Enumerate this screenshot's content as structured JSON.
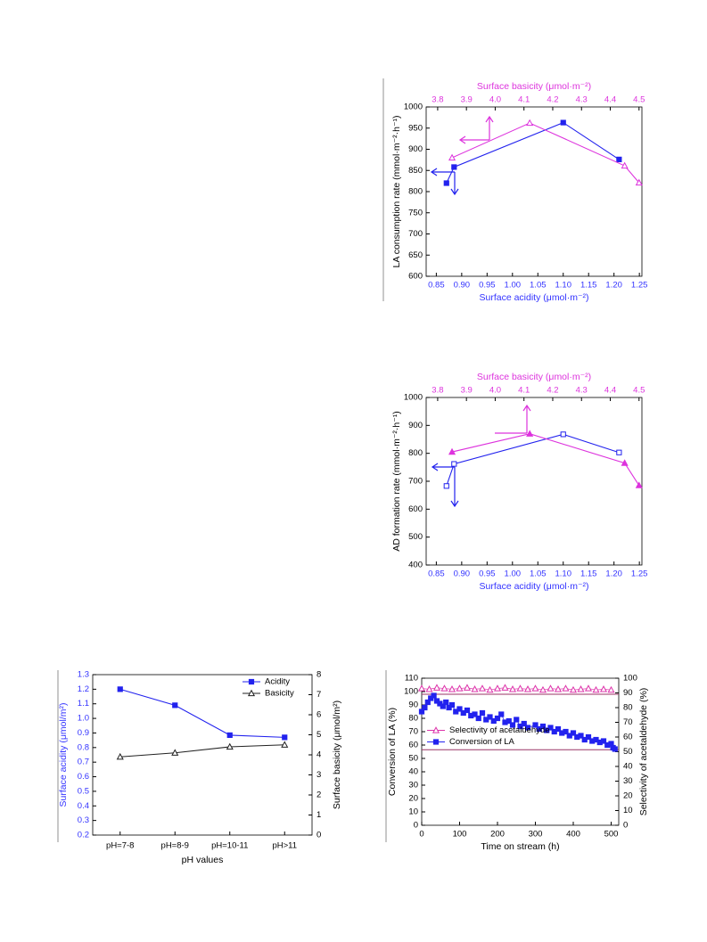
{
  "chart_data": [
    {
      "type": "line",
      "x_label": "Surface acidity (μmol·m⁻²)",
      "x2_label": "Surface basicity (μmol·m⁻²)",
      "y_label": "LA consumption rate (mmol·m⁻²·h⁻¹)",
      "axis_colors": {
        "x": "#3333ff",
        "x2": "#dd33dd"
      },
      "xlim": [
        0.83,
        1.255
      ],
      "xticks": [
        0.85,
        {
          "value": 0.9,
          "label": "0.90"
        },
        0.95,
        {
          "value": 1,
          "label": "1.00"
        },
        1.05,
        {
          "value": 1.1,
          "label": "1.10"
        },
        1.15,
        {
          "value": 1.2,
          "label": "1.20"
        },
        1.25
      ],
      "x2lim": [
        3.76,
        4.51
      ],
      "x2ticks": [
        3.8,
        3.9,
        {
          "value": 4,
          "label": "4.0"
        },
        4.1,
        4.2,
        4.3,
        4.4,
        4.5
      ],
      "ylim": [
        600,
        1000
      ],
      "yticks": [
        600,
        650,
        700,
        750,
        800,
        850,
        900,
        950,
        1000
      ],
      "series": [
        {
          "color": "#2222ee",
          "marker": "square",
          "filled": true,
          "x": [
            0.87,
            0.885,
            1.1,
            1.21
          ],
          "values": [
            820,
            858,
            963,
            876
          ]
        },
        {
          "color": "#dd33dd",
          "marker": "triangle",
          "filled": false,
          "axis": "x2",
          "x": [
            3.85,
            4.12,
            4.45,
            4.5
          ],
          "values": [
            880,
            962,
            861,
            821
          ]
        }
      ]
    },
    {
      "type": "line",
      "x_label": "Surface acidity (μmol·m⁻²)",
      "x2_label": "Surface basicity (μmol·m⁻²)",
      "y_label": "AD formation rate (mmol·m⁻²·h⁻¹)",
      "axis_colors": {
        "x": "#3333ff",
        "x2": "#dd33dd"
      },
      "xlim": [
        0.83,
        1.255
      ],
      "xticks": [
        0.85,
        {
          "value": 0.9,
          "label": "0.90"
        },
        0.95,
        {
          "value": 1,
          "label": "1.00"
        },
        1.05,
        {
          "value": 1.1,
          "label": "1.10"
        },
        1.15,
        {
          "value": 1.2,
          "label": "1.20"
        },
        1.25
      ],
      "x2lim": [
        3.76,
        4.51
      ],
      "x2ticks": [
        3.8,
        3.9,
        {
          "value": 4,
          "label": "4.0"
        },
        4.1,
        4.2,
        4.3,
        4.4,
        4.5
      ],
      "ylim": [
        400,
        1000
      ],
      "yticks": [
        400,
        500,
        600,
        700,
        800,
        900,
        1000
      ],
      "series": [
        {
          "color": "#2222ee",
          "marker": "square",
          "filled": false,
          "x": [
            0.87,
            0.885,
            1.1,
            1.21
          ],
          "values": [
            683,
            762,
            868,
            803
          ]
        },
        {
          "color": "#dd33dd",
          "marker": "triangle",
          "filled": true,
          "axis": "x2",
          "x": [
            3.85,
            4.12,
            4.45,
            4.5
          ],
          "values": [
            805,
            870,
            765,
            685
          ]
        }
      ]
    },
    {
      "type": "line",
      "x_label": "pH values",
      "y_label": "Surface acidity (μmol/m²)",
      "y2_label": "Surface basicity (μmol/m²)",
      "axis_colors": {
        "y": "#3333ff"
      },
      "legend": "upper right",
      "categories": [
        "pH=7-8",
        "pH=8-9",
        "pH=10-11",
        "pH>11"
      ],
      "ylim": [
        0.2,
        1.3
      ],
      "yticks": [
        0.2,
        0.3,
        0.4,
        0.5,
        0.6,
        0.7,
        0.8,
        0.9,
        {
          "value": 1,
          "label": "1.0"
        },
        1.1,
        1.2,
        1.3
      ],
      "y2lim": [
        0,
        8
      ],
      "y2ticks": [
        0,
        1,
        2,
        3,
        4,
        5,
        6,
        7,
        8
      ],
      "series": [
        {
          "name": "Acidity",
          "color": "#2222ee",
          "marker": "square",
          "filled": true,
          "values": [
            1.2,
            1.09,
            0.885,
            0.87
          ]
        },
        {
          "name": "Basicity",
          "color": "#222222",
          "marker": "triangle",
          "filled": false,
          "axis": "y2",
          "values": [
            3.9,
            4.1,
            4.4,
            4.5
          ]
        }
      ]
    },
    {
      "type": "scatter",
      "x_label": "Time on stream (h)",
      "y_label": "Conversion of LA (%)",
      "y2_label": "Selectivity of acetaldehyde (%)",
      "legend": "center left",
      "xlim": [
        0,
        520
      ],
      "xticks": [
        0,
        100,
        200,
        300,
        400,
        500
      ],
      "ylim": [
        0,
        110
      ],
      "yticks": [
        0,
        10,
        20,
        30,
        40,
        50,
        60,
        70,
        80,
        90,
        100,
        110
      ],
      "y2lim": [
        0,
        100
      ],
      "y2ticks": [
        0,
        10,
        20,
        30,
        40,
        50,
        60,
        70,
        80,
        90,
        100
      ],
      "hlines": [
        98,
        56.5
      ],
      "hline_color": "#993366",
      "series": [
        {
          "name": "Selectivity of acetaldehyde",
          "color": "#dd33aa",
          "marker": "triangle",
          "filled": false,
          "axis": "y2",
          "x": [
            0,
            20,
            40,
            60,
            80,
            100,
            120,
            140,
            160,
            180,
            200,
            220,
            240,
            260,
            280,
            300,
            320,
            340,
            360,
            380,
            400,
            420,
            440,
            460,
            480,
            500
          ],
          "values": [
            93,
            92.5,
            93.5,
            93,
            92.5,
            93,
            93.5,
            92.5,
            93,
            92,
            93,
            93.5,
            92.5,
            93,
            92.5,
            93,
            92,
            93,
            92.5,
            93,
            92,
            92.5,
            93,
            92,
            92.5,
            92
          ]
        },
        {
          "name": "Conversion of LA",
          "color": "#2222ee",
          "marker": "square",
          "filled": true,
          "x": [
            0,
            8,
            16,
            24,
            32,
            40,
            48,
            56,
            64,
            72,
            80,
            90,
            100,
            110,
            120,
            130,
            140,
            150,
            160,
            170,
            180,
            190,
            200,
            210,
            220,
            230,
            240,
            250,
            260,
            270,
            280,
            300,
            310,
            320,
            330,
            340,
            350,
            360,
            370,
            380,
            390,
            400,
            410,
            420,
            430,
            440,
            450,
            460,
            470,
            480,
            490,
            500,
            505,
            510
          ],
          "values": [
            85,
            88,
            92,
            95,
            97,
            93,
            91,
            89,
            92,
            88,
            90,
            85,
            87,
            84,
            86,
            82,
            83,
            80,
            84,
            79,
            81,
            78,
            80,
            83,
            77,
            78,
            75,
            79,
            74,
            76,
            73,
            75,
            72,
            74,
            71,
            73,
            70,
            72,
            69,
            70,
            67,
            69,
            66,
            67,
            64,
            66,
            63,
            64,
            62,
            63,
            60,
            61,
            58,
            57
          ]
        }
      ]
    }
  ]
}
